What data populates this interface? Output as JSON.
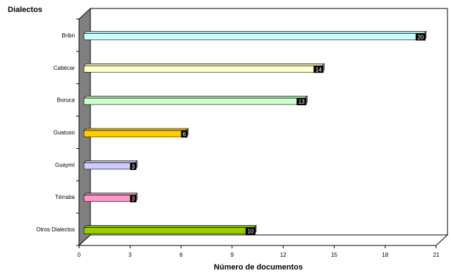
{
  "chart_data": {
    "type": "bar",
    "orientation": "horizontal",
    "title": "Dialectos",
    "xlabel": "Número de documentos",
    "ylabel": "",
    "categories": [
      "Bribri",
      "Cabécar",
      "Boruca",
      "Guatuso",
      "Guaymí",
      "Térraba",
      "Otros Dialectos"
    ],
    "values": [
      20,
      14,
      13,
      6,
      3,
      3,
      10
    ],
    "colors": [
      "#ccffff",
      "#ffffcc",
      "#ccffcc",
      "#ffcc00",
      "#ccccff",
      "#ff99cc",
      "#99cc00"
    ],
    "xlim": [
      0,
      21
    ],
    "xticks": [
      0,
      3,
      6,
      9,
      12,
      15,
      18,
      21
    ],
    "grid": false,
    "legend": "none",
    "style": "3d"
  }
}
